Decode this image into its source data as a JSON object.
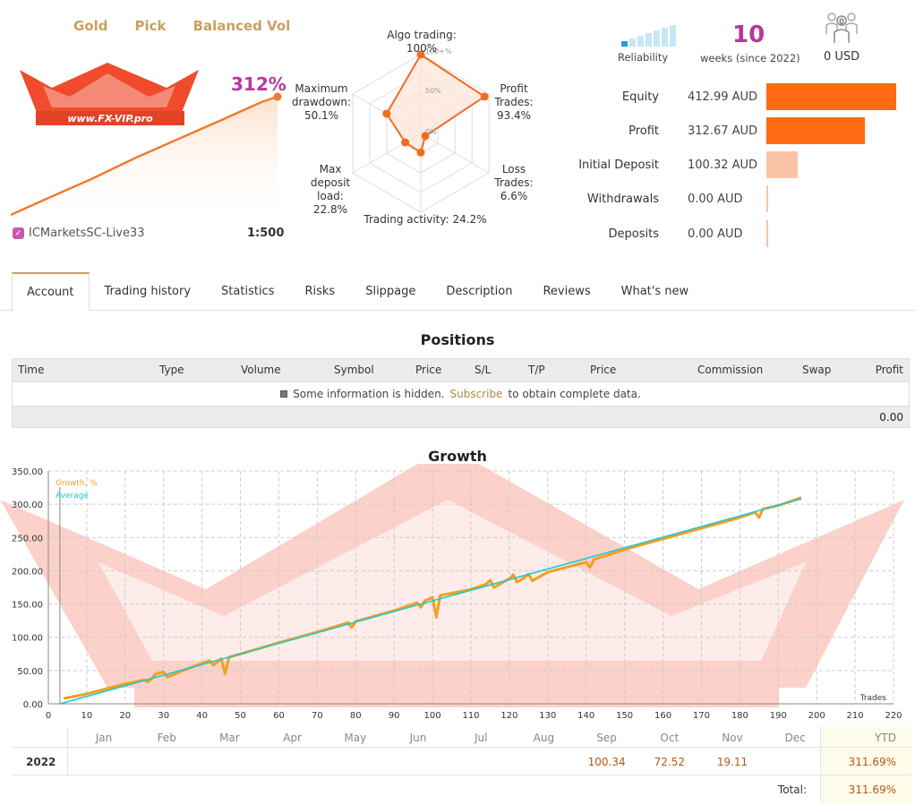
{
  "header": {
    "tags": [
      "Gold",
      "Pick",
      "Balanced Vol"
    ],
    "logo_text": "www.FX-VIP.pro",
    "growth_percent": "312%",
    "broker": "ICMarketsSC-Live33",
    "leverage": "1:500"
  },
  "radar": {
    "labels": {
      "algo": "Algo trading: 100%",
      "profit_trades": "Profit\nTrades:\n93.4%",
      "loss_trades": "Loss\nTrades:\n6.6%",
      "activity": "Trading activity: 24.2%",
      "deposit_load": "Max\ndeposit\nload:\n22.8%",
      "drawdown": "Maximum\ndrawdown:\n50.1%"
    },
    "scale": [
      "100+%",
      "50%",
      "0%"
    ],
    "values": [
      1.0,
      0.934,
      0.066,
      0.242,
      0.228,
      0.501
    ]
  },
  "metrics": {
    "reliability_label": "Reliability",
    "reliability_level": 1,
    "weeks": "10",
    "weeks_label": "weeks (since 2022)",
    "subscribers_count": "0",
    "subscribers_value": "0 USD"
  },
  "finance": [
    {
      "label": "Equity",
      "value": "412.99 AUD",
      "bar": 1.0,
      "color": "#ff6a13"
    },
    {
      "label": "Profit",
      "value": "312.67 AUD",
      "bar": 0.757,
      "color": "#ff6a13"
    },
    {
      "label": "Initial Deposit",
      "value": "100.32 AUD",
      "bar": 0.243,
      "color": "#fcc4a6"
    },
    {
      "label": "Withdrawals",
      "value": "0.00 AUD",
      "bar": 0.0,
      "color": "#fcc4a6"
    },
    {
      "label": "Deposits",
      "value": "0.00 AUD",
      "bar": 0.0,
      "color": "#fcc4a6"
    }
  ],
  "tabs": [
    "Account",
    "Trading history",
    "Statistics",
    "Risks",
    "Slippage",
    "Description",
    "Reviews",
    "What's new"
  ],
  "positions": {
    "title": "Positions",
    "columns": [
      "Time",
      "Type",
      "Volume",
      "Symbol",
      "Price",
      "S/L",
      "T/P",
      "Price",
      "Commission",
      "Swap",
      "Profit"
    ],
    "info_prefix": "Some information is hidden.",
    "info_link": "Subscribe",
    "info_suffix": "to obtain complete data.",
    "total": "0.00"
  },
  "growth": {
    "title": "Growth",
    "legend": [
      "Growth, %",
      "Average"
    ],
    "x_axis_label": "Trades"
  },
  "chart_data": {
    "type": "line",
    "title": "Growth",
    "xlabel": "Trades",
    "ylabel": "",
    "xlim": [
      0,
      220
    ],
    "ylim": [
      0,
      350
    ],
    "x_ticks": [
      0,
      10,
      20,
      30,
      40,
      50,
      60,
      70,
      80,
      90,
      100,
      110,
      120,
      130,
      140,
      150,
      160,
      170,
      180,
      190,
      200,
      210,
      220
    ],
    "y_ticks": [
      "0.00",
      "50.00",
      "100.00",
      "150.00",
      "200.00",
      "250.00",
      "300.00",
      "350.00"
    ],
    "grid": true,
    "legend_position": "top-left",
    "series": [
      {
        "name": "Growth, %",
        "color": "#f0a020",
        "x": [
          4,
          10,
          20,
          25,
          26,
          28,
          30,
          31,
          35,
          42,
          43,
          45,
          46,
          47,
          50,
          60,
          70,
          78,
          79,
          80,
          90,
          96,
          97,
          98,
          100,
          101,
          102,
          110,
          114,
          115,
          116,
          120,
          121,
          122,
          124,
          125,
          126,
          130,
          140,
          141,
          142,
          150,
          160,
          170,
          180,
          184,
          185,
          186,
          190,
          196
        ],
        "y": [
          8,
          15,
          30,
          36,
          33,
          45,
          48,
          40,
          50,
          65,
          58,
          68,
          45,
          70,
          75,
          92,
          108,
          122,
          115,
          124,
          140,
          152,
          145,
          155,
          160,
          130,
          163,
          172,
          180,
          186,
          175,
          188,
          194,
          183,
          190,
          195,
          185,
          198,
          213,
          205,
          217,
          232,
          248,
          264,
          280,
          288,
          280,
          293,
          298,
          310
        ]
      },
      {
        "name": "Average",
        "color": "#20c8d0",
        "x": [
          3,
          196
        ],
        "y": [
          0,
          308
        ]
      }
    ]
  },
  "monthly": {
    "months": [
      "Jan",
      "Feb",
      "Mar",
      "Apr",
      "May",
      "Jun",
      "Jul",
      "Aug",
      "Sep",
      "Oct",
      "Nov",
      "Dec"
    ],
    "ytd_label": "YTD",
    "year": "2022",
    "values": {
      "Sep": "100.34",
      "Oct": "72.52",
      "Nov": "19.11"
    },
    "ytd": "311.69%",
    "total_label": "Total:",
    "total": "311.69%"
  },
  "colors": {
    "accent_gold": "#c8a060",
    "magenta": "#b8389a",
    "orange": "#ff6a13",
    "watermark": "#f26a50"
  }
}
